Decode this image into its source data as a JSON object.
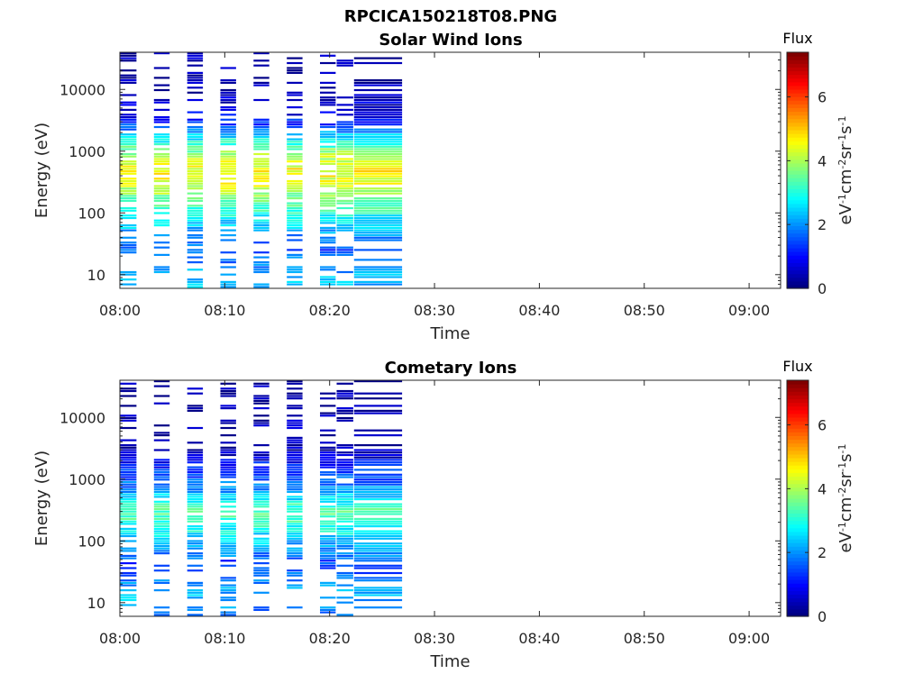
{
  "figure_title": "RPCICA150218T08.PNG",
  "colors": {
    "colormap": "jet",
    "axis": "#262626",
    "background": "#ffffff"
  },
  "chart_data": [
    {
      "type": "heatmap",
      "title": "Solar Wind Ions",
      "xlabel": "Time",
      "ylabel": "Energy (eV)",
      "yscale": "log",
      "xlim": [
        "08:00",
        "09:03"
      ],
      "ylim": [
        6,
        40000
      ],
      "xticks": [
        "08:00",
        "08:10",
        "08:20",
        "08:30",
        "08:40",
        "08:50",
        "09:00"
      ],
      "yticks": [
        10,
        100,
        1000,
        10000
      ],
      "ytick_labels": [
        "10",
        "100",
        "1000",
        "10000"
      ],
      "colorbar": {
        "title": "Flux",
        "label": "eV-1cm-2sr-1s-1",
        "ticks": [
          "0",
          "2",
          "4",
          "6"
        ],
        "range": [
          0,
          7.4
        ]
      },
      "data_extent": [
        "08:00",
        "08:27"
      ],
      "sweeps": [
        {
          "start": "08:00:00",
          "end": "08:01:40"
        },
        {
          "start": "08:03:15",
          "end": "08:04:50"
        },
        {
          "start": "08:06:25",
          "end": "08:08:00"
        },
        {
          "start": "08:09:35",
          "end": "08:11:10"
        },
        {
          "start": "08:12:45",
          "end": "08:14:20"
        },
        {
          "start": "08:15:55",
          "end": "08:17:30"
        },
        {
          "start": "08:19:05",
          "end": "08:20:40"
        },
        {
          "start": "08:20:40",
          "end": "08:22:20"
        },
        {
          "start": "08:22:20",
          "end": "08:27:00"
        }
      ],
      "profile": [
        {
          "energy": 30000,
          "flux": 0.3
        },
        {
          "energy": 15000,
          "flux": 0.3
        },
        {
          "energy": 8000,
          "flux": 0.4
        },
        {
          "energy": 4000,
          "flux": 0.8
        },
        {
          "energy": 2500,
          "flux": 1.4
        },
        {
          "energy": 1800,
          "flux": 2.4
        },
        {
          "energy": 1200,
          "flux": 3.3
        },
        {
          "energy": 800,
          "flux": 4.1
        },
        {
          "energy": 500,
          "flux": 4.6
        },
        {
          "energy": 300,
          "flux": 4.4
        },
        {
          "energy": 200,
          "flux": 3.9
        },
        {
          "energy": 130,
          "flux": 3.3
        },
        {
          "energy": 90,
          "flux": 2.8
        },
        {
          "energy": 60,
          "flux": 2.4
        },
        {
          "energy": 40,
          "flux": 1.8
        },
        {
          "energy": 25,
          "flux": 1.5
        },
        {
          "energy": 15,
          "flux": 1.9
        },
        {
          "energy": 8,
          "flux": 2.3
        }
      ]
    },
    {
      "type": "heatmap",
      "title": "Cometary Ions",
      "xlabel": "Time",
      "ylabel": "Energy (eV)",
      "yscale": "log",
      "xlim": [
        "08:00",
        "09:03"
      ],
      "ylim": [
        6,
        40000
      ],
      "xticks": [
        "08:00",
        "08:10",
        "08:20",
        "08:30",
        "08:40",
        "08:50",
        "09:00"
      ],
      "yticks": [
        10,
        100,
        1000,
        10000
      ],
      "ytick_labels": [
        "10",
        "100",
        "1000",
        "10000"
      ],
      "colorbar": {
        "title": "Flux",
        "label": "eV-1cm-2sr-1s-1",
        "ticks": [
          "0",
          "2",
          "4",
          "6"
        ],
        "range": [
          0,
          7.4
        ]
      },
      "data_extent": [
        "08:00",
        "08:27"
      ],
      "sweeps": [
        {
          "start": "08:00:00",
          "end": "08:01:40"
        },
        {
          "start": "08:03:15",
          "end": "08:04:50"
        },
        {
          "start": "08:06:25",
          "end": "08:08:00"
        },
        {
          "start": "08:09:35",
          "end": "08:11:10"
        },
        {
          "start": "08:12:45",
          "end": "08:14:20"
        },
        {
          "start": "08:15:55",
          "end": "08:17:30"
        },
        {
          "start": "08:19:05",
          "end": "08:20:40"
        },
        {
          "start": "08:20:40",
          "end": "08:22:20"
        },
        {
          "start": "08:22:20",
          "end": "08:27:00"
        }
      ],
      "profile": [
        {
          "energy": 26000,
          "flux": 0.2
        },
        {
          "energy": 12500,
          "flux": 0.3
        },
        {
          "energy": 2500,
          "flux": 0.4
        },
        {
          "energy": 1800,
          "flux": 1.0
        },
        {
          "energy": 1200,
          "flux": 1.4
        },
        {
          "energy": 700,
          "flux": 1.9
        },
        {
          "energy": 500,
          "flux": 2.6
        },
        {
          "energy": 350,
          "flux": 3.2
        },
        {
          "energy": 250,
          "flux": 3.4
        },
        {
          "energy": 180,
          "flux": 3.0
        },
        {
          "energy": 120,
          "flux": 2.6
        },
        {
          "energy": 90,
          "flux": 2.3
        },
        {
          "energy": 60,
          "flux": 1.9
        },
        {
          "energy": 45,
          "flux": 1.3
        },
        {
          "energy": 12,
          "flux": 2.3
        },
        {
          "energy": 8,
          "flux": 1.9
        }
      ]
    }
  ]
}
